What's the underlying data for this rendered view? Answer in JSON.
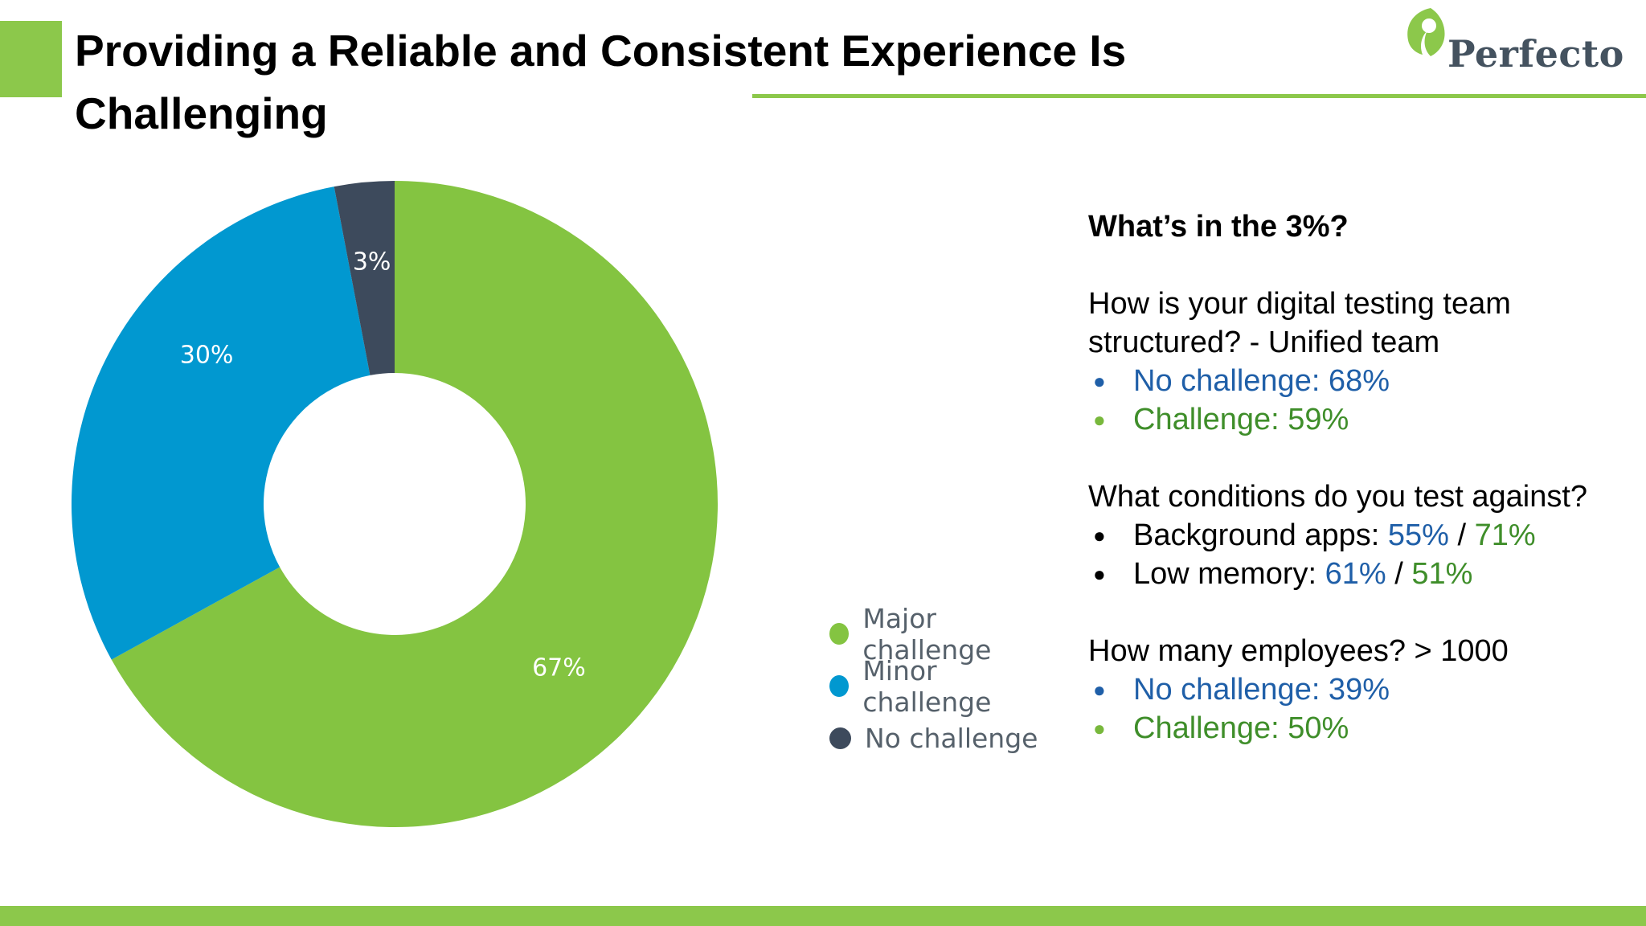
{
  "slide": {
    "title": "Providing a Reliable and Consistent Experience Is Challenging",
    "logo_text": "Perfecto",
    "accent_color": "#8cc84b"
  },
  "chart_data": {
    "type": "pie",
    "donut": true,
    "categories": [
      "Major challenge",
      "Minor challenge",
      "No challenge"
    ],
    "values": [
      67,
      30,
      3
    ],
    "labels": [
      "67%",
      "30%",
      "3%"
    ],
    "colors": [
      "#84c441",
      "#0198d0",
      "#3d4a5c"
    ],
    "legend": "right"
  },
  "panel": {
    "heading": "What’s in the 3%?",
    "q1": {
      "question": "How is your digital testing team structured? - Unified team",
      "bullets": [
        {
          "text": "No challenge: 68%",
          "color": "blue"
        },
        {
          "text": "Challenge: 59%",
          "color": "green"
        }
      ]
    },
    "q2": {
      "question": "What conditions do you test against?",
      "bullets": [
        {
          "label": "Background apps: ",
          "a": "55%",
          "sep": " / ",
          "b": "71%"
        },
        {
          "label": "Low memory: ",
          "a": "61%",
          "sep": " / ",
          "b": "51%"
        }
      ]
    },
    "q3": {
      "question": "How many employees? > 1000",
      "bullets": [
        {
          "text": "No challenge: 39%",
          "color": "blue"
        },
        {
          "text": "Challenge: 50%",
          "color": "green"
        }
      ]
    }
  }
}
